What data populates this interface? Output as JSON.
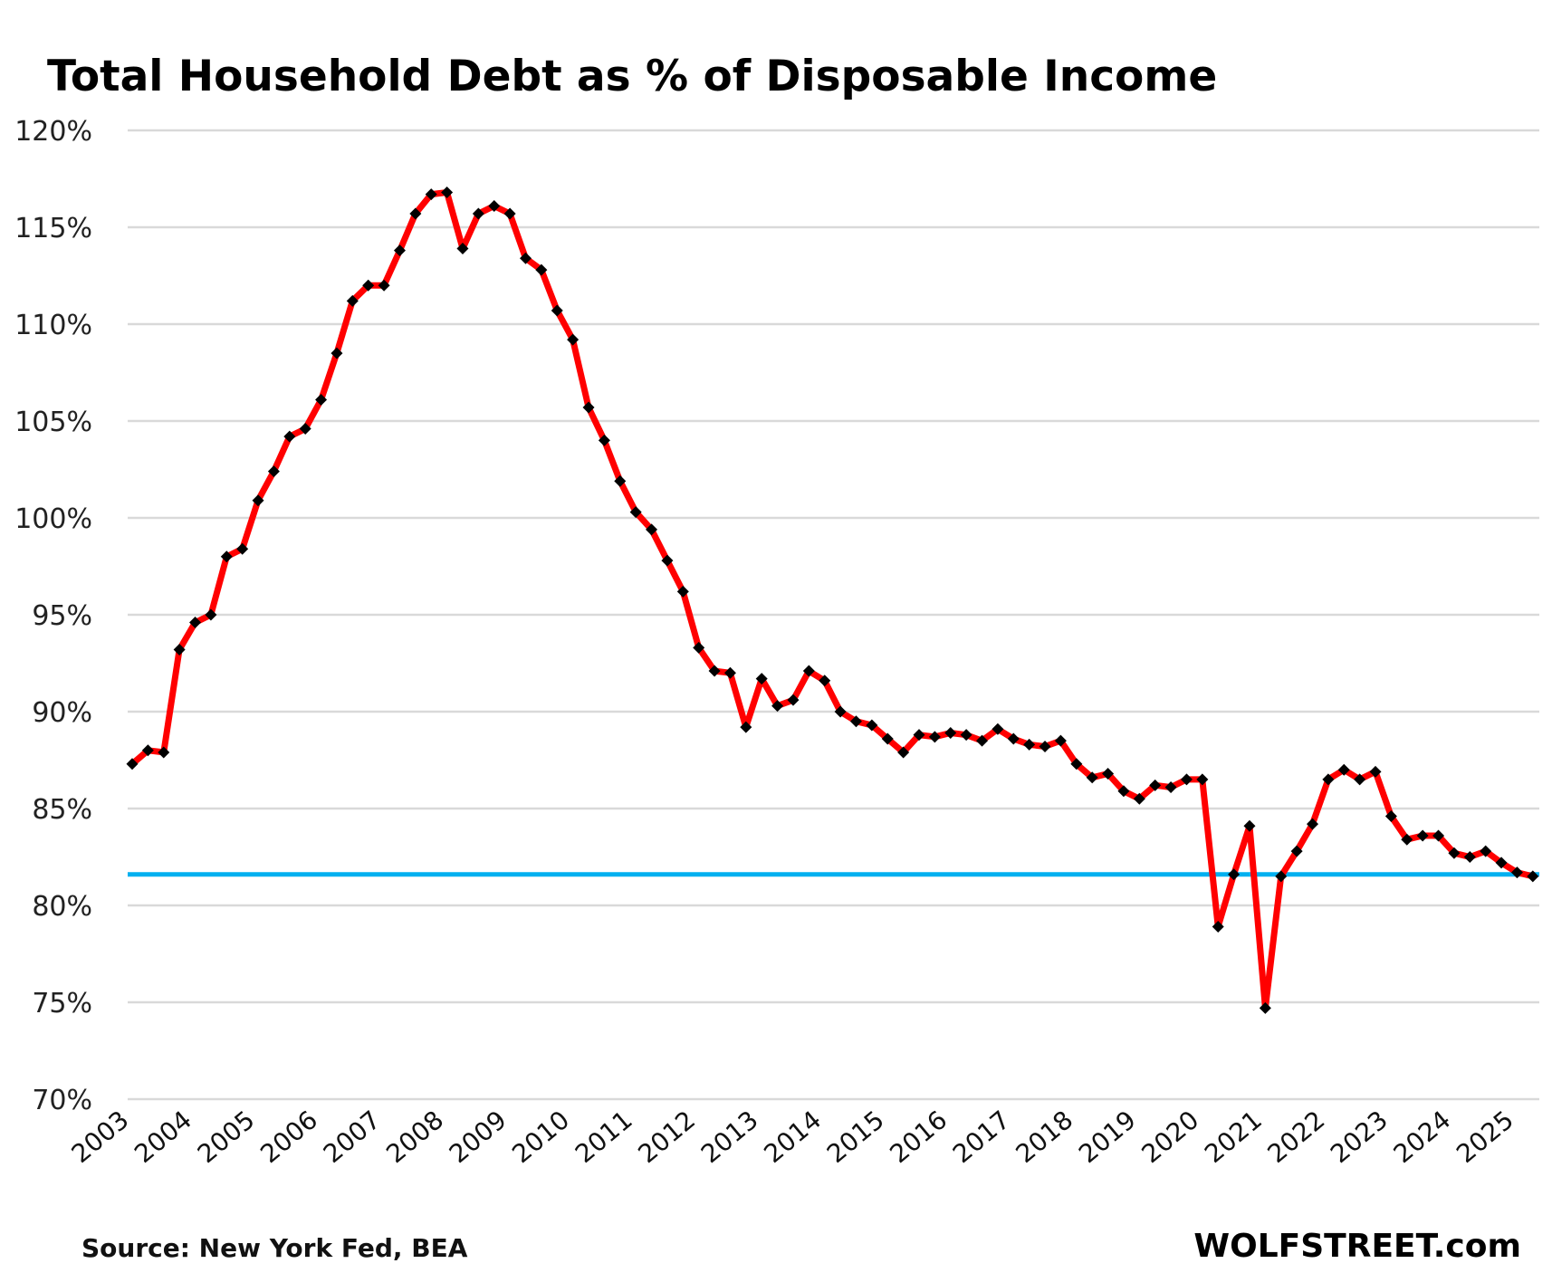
{
  "chart_data": {
    "type": "line",
    "title": "Total Household Debt as % of Disposable Income",
    "xlabel": "",
    "ylabel": "",
    "ylim": [
      70,
      120
    ],
    "yticks": [
      "70%",
      "75%",
      "80%",
      "85%",
      "90%",
      "95%",
      "100%",
      "105%",
      "110%",
      "115%",
      "120%"
    ],
    "ytick_values": [
      70,
      75,
      80,
      85,
      90,
      95,
      100,
      105,
      110,
      115,
      120
    ],
    "xticks": [
      "2003",
      "2004",
      "2005",
      "2006",
      "2007",
      "2008",
      "2009",
      "2010",
      "2011",
      "2012",
      "2013",
      "2014",
      "2015",
      "2016",
      "2017",
      "2018",
      "2019",
      "2020",
      "2021",
      "2022",
      "2023",
      "2024",
      "2025"
    ],
    "x_start": "2003 Q1",
    "x_frequency": "quarterly",
    "grid": true,
    "series": [
      {
        "name": "Household debt % of disposable income",
        "color": "#ff0000",
        "marker_color": "#000000",
        "values": [
          87.3,
          88.0,
          87.9,
          93.2,
          94.6,
          95.0,
          98.0,
          98.4,
          100.9,
          102.4,
          104.2,
          104.6,
          106.1,
          108.5,
          111.2,
          112.0,
          112.0,
          113.8,
          115.7,
          116.7,
          116.8,
          113.9,
          115.7,
          116.1,
          115.7,
          113.4,
          112.8,
          110.7,
          109.2,
          105.7,
          104.0,
          101.9,
          100.3,
          99.4,
          97.8,
          96.2,
          93.3,
          92.1,
          92.0,
          89.2,
          91.7,
          90.3,
          90.6,
          92.1,
          91.6,
          90.0,
          89.5,
          89.3,
          88.6,
          87.9,
          88.8,
          88.7,
          88.9,
          88.8,
          88.5,
          89.1,
          88.6,
          88.3,
          88.2,
          88.5,
          87.3,
          86.6,
          86.8,
          85.9,
          85.5,
          86.2,
          86.1,
          86.5,
          86.5,
          78.9,
          81.6,
          84.1,
          74.7,
          81.5,
          82.8,
          84.2,
          86.5,
          87.0,
          86.5,
          86.9,
          84.6,
          83.4,
          83.6,
          83.6,
          82.7,
          82.5,
          82.8,
          82.2,
          81.7,
          81.5
        ]
      }
    ],
    "reference_line": {
      "value": 81.6,
      "color": "#00b0f0"
    },
    "source": "Source: New York Fed, BEA",
    "brand": "WOLFSTREET.com"
  }
}
